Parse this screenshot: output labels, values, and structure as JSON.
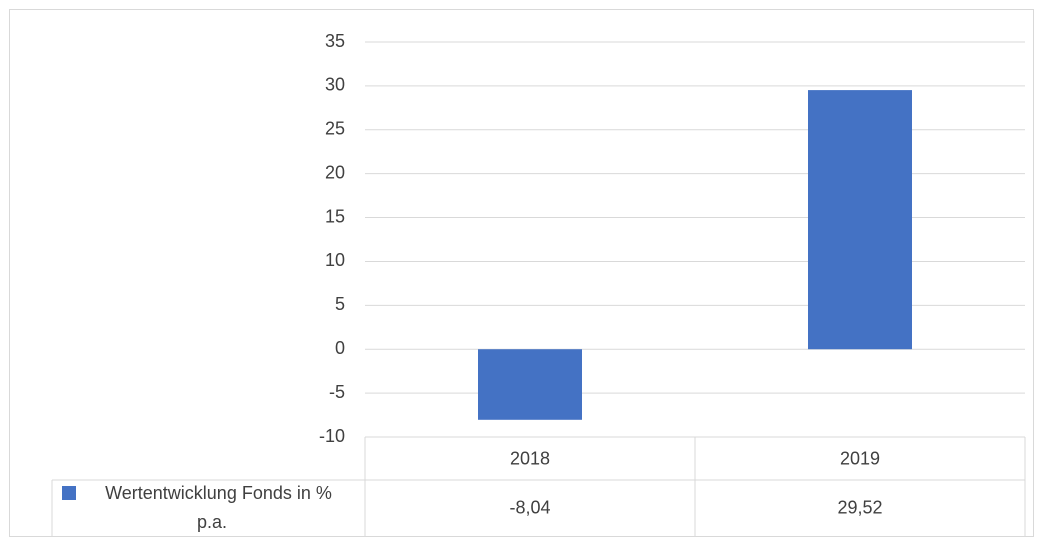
{
  "chart_data": {
    "type": "bar",
    "categories": [
      "2018",
      "2019"
    ],
    "series": [
      {
        "name": "Wertentwicklung Fonds in % p.a.",
        "color": "#4472c4",
        "values": [
          -8.04,
          29.52
        ],
        "value_labels": [
          "-8,04",
          "29,52"
        ]
      }
    ],
    "ylim": [
      -10,
      35
    ],
    "yticks": [
      -10,
      -5,
      0,
      5,
      10,
      15,
      20,
      25,
      30,
      35
    ],
    "grid": true
  }
}
